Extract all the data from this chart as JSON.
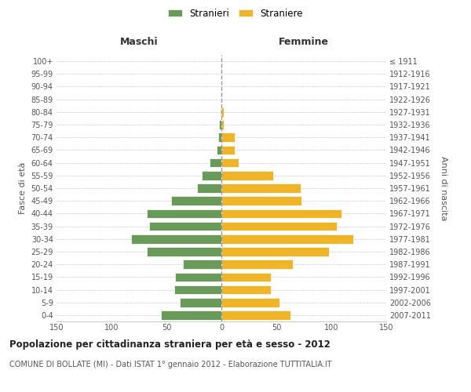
{
  "age_groups": [
    "0-4",
    "5-9",
    "10-14",
    "15-19",
    "20-24",
    "25-29",
    "30-34",
    "35-39",
    "40-44",
    "45-49",
    "50-54",
    "55-59",
    "60-64",
    "65-69",
    "70-74",
    "75-79",
    "80-84",
    "85-89",
    "90-94",
    "95-99",
    "100+"
  ],
  "birth_years": [
    "2007-2011",
    "2002-2006",
    "1997-2001",
    "1992-1996",
    "1987-1991",
    "1982-1986",
    "1977-1981",
    "1972-1976",
    "1967-1971",
    "1962-1966",
    "1957-1961",
    "1952-1956",
    "1947-1951",
    "1942-1946",
    "1937-1941",
    "1932-1936",
    "1927-1931",
    "1922-1926",
    "1917-1921",
    "1912-1916",
    "≤ 1911"
  ],
  "maschi": [
    55,
    38,
    43,
    42,
    35,
    68,
    82,
    66,
    68,
    46,
    22,
    18,
    11,
    4,
    3,
    2,
    1,
    0,
    0,
    0,
    0
  ],
  "femmine": [
    63,
    53,
    45,
    45,
    65,
    98,
    120,
    105,
    109,
    73,
    72,
    47,
    16,
    12,
    12,
    2,
    2,
    0,
    0,
    0,
    0
  ],
  "color_maschi": "#6a9a5a",
  "color_femmine": "#f0b428",
  "title": "Popolazione per cittadinanza straniera per età e sesso - 2012",
  "subtitle": "COMUNE DI BOLLATE (MI) - Dati ISTAT 1° gennaio 2012 - Elaborazione TUTTITALIA.IT",
  "xlabel_left": "Maschi",
  "xlabel_right": "Femmine",
  "ylabel_left": "Fasce di età",
  "ylabel_right": "Anni di nascita",
  "legend_maschi": "Stranieri",
  "legend_femmine": "Straniere",
  "xlim": 150,
  "background_color": "#ffffff",
  "grid_color": "#cccccc"
}
